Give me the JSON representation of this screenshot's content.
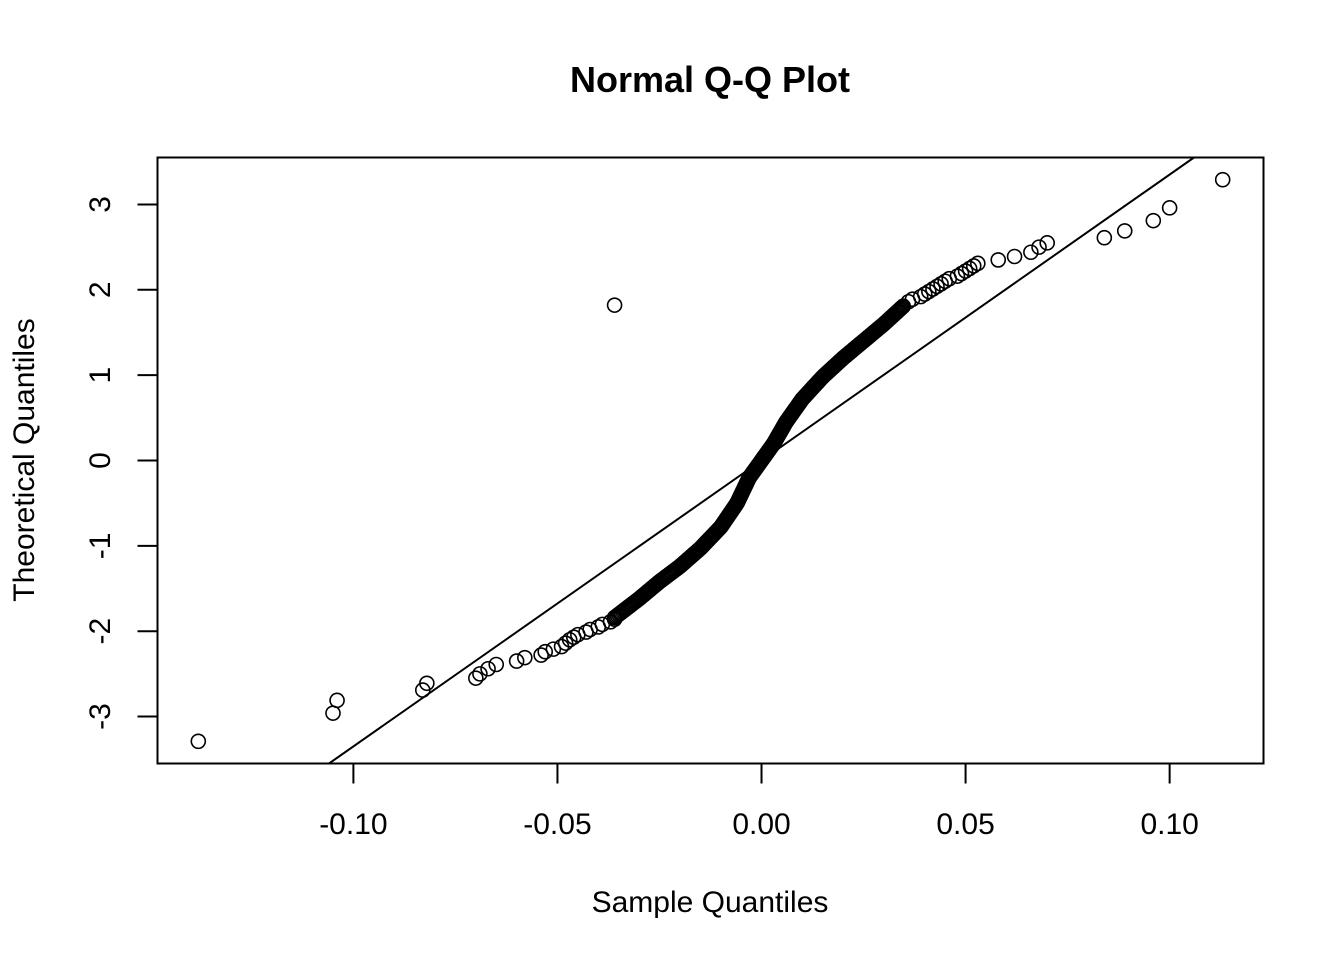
{
  "chart_data": {
    "type": "scatter",
    "title": "Normal Q-Q Plot",
    "xlabel": "Sample Quantiles",
    "ylabel": "Theoretical Quantiles",
    "xlim": [
      -0.148,
      0.123
    ],
    "ylim": [
      -3.55,
      3.55
    ],
    "x_ticks": [
      -0.1,
      -0.05,
      0.0,
      0.05,
      0.1
    ],
    "x_tick_labels": [
      "-0.10",
      "-0.05",
      "0.00",
      "0.05",
      "0.10"
    ],
    "y_ticks": [
      -3,
      -2,
      -1,
      0,
      1,
      2,
      3
    ],
    "y_tick_labels": [
      "-3",
      "-2",
      "-1",
      "0",
      "1",
      "2",
      "3"
    ],
    "grid": false,
    "legend": "none",
    "marker": "open-circle",
    "reference_line": {
      "slope": 33.5,
      "intercept": 0.0
    },
    "tail_points": [
      [
        -0.138,
        -3.29
      ],
      [
        -0.105,
        -2.96
      ],
      [
        -0.104,
        -2.81
      ],
      [
        -0.083,
        -2.69
      ],
      [
        -0.082,
        -2.61
      ],
      [
        -0.07,
        -2.55
      ],
      [
        -0.069,
        -2.5
      ],
      [
        -0.067,
        -2.44
      ],
      [
        -0.065,
        -2.39
      ],
      [
        -0.06,
        -2.35
      ],
      [
        -0.058,
        -2.31
      ],
      [
        -0.054,
        -2.28
      ],
      [
        -0.053,
        -2.24
      ],
      [
        -0.051,
        -2.21
      ],
      [
        -0.049,
        -2.18
      ],
      [
        -0.048,
        -2.14
      ],
      [
        -0.047,
        -2.1
      ],
      [
        -0.046,
        -2.07
      ],
      [
        -0.045,
        -2.04
      ],
      [
        -0.043,
        -2.01
      ],
      [
        -0.042,
        -1.98
      ],
      [
        -0.04,
        -1.95
      ],
      [
        -0.039,
        -1.92
      ],
      [
        -0.037,
        -1.89
      ],
      [
        -0.036,
        -1.86
      ],
      [
        0.036,
        1.86
      ],
      [
        0.037,
        1.89
      ],
      [
        0.039,
        1.92
      ],
      [
        0.04,
        1.95
      ],
      [
        0.041,
        1.98
      ],
      [
        0.042,
        2.01
      ],
      [
        0.043,
        2.04
      ],
      [
        0.044,
        2.07
      ],
      [
        0.045,
        2.1
      ],
      [
        0.046,
        2.13
      ],
      [
        0.048,
        2.16
      ],
      [
        0.049,
        2.19
      ],
      [
        0.05,
        2.22
      ],
      [
        0.051,
        2.25
      ],
      [
        0.052,
        2.28
      ],
      [
        0.053,
        2.31
      ],
      [
        0.058,
        2.35
      ],
      [
        0.062,
        2.39
      ],
      [
        0.066,
        2.44
      ],
      [
        0.068,
        2.5
      ],
      [
        0.07,
        2.55
      ],
      [
        0.084,
        2.61
      ],
      [
        0.089,
        2.69
      ],
      [
        0.096,
        2.81
      ],
      [
        0.1,
        2.96
      ],
      [
        0.113,
        3.29
      ]
    ],
    "body_curve": [
      [
        -0.036,
        -1.84
      ],
      [
        -0.03,
        -1.62
      ],
      [
        -0.025,
        -1.42
      ],
      [
        -0.02,
        -1.24
      ],
      [
        -0.015,
        -1.03
      ],
      [
        -0.01,
        -0.78
      ],
      [
        -0.006,
        -0.5
      ],
      [
        -0.003,
        -0.2
      ],
      [
        0.0,
        0.0
      ],
      [
        0.003,
        0.2
      ],
      [
        0.006,
        0.45
      ],
      [
        0.01,
        0.72
      ],
      [
        0.015,
        0.98
      ],
      [
        0.02,
        1.2
      ],
      [
        0.025,
        1.4
      ],
      [
        0.03,
        1.6
      ],
      [
        0.035,
        1.82
      ]
    ]
  }
}
